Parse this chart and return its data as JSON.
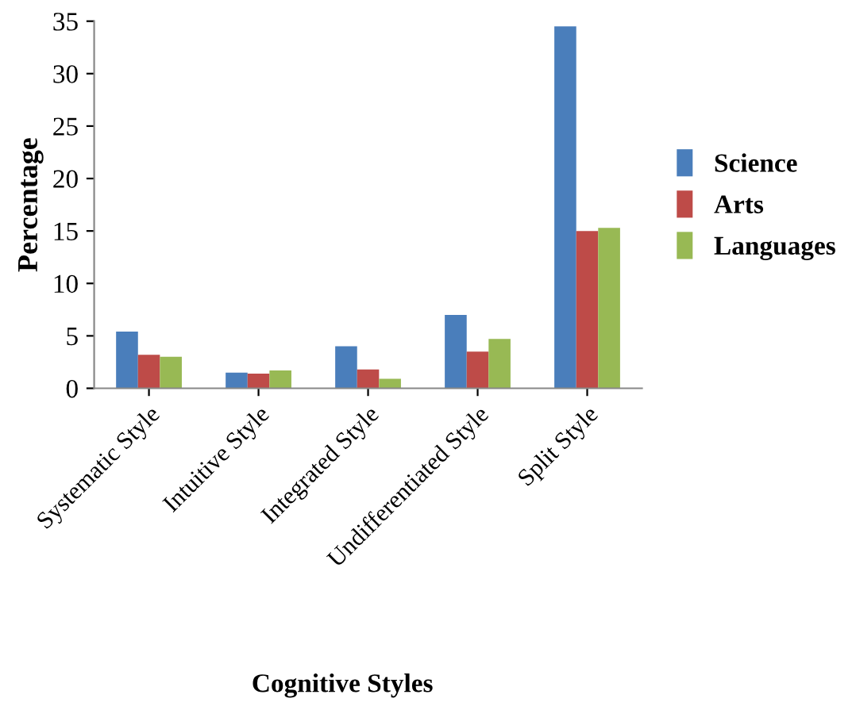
{
  "chart_data": {
    "type": "bar",
    "xlabel": "Cognitive Styles",
    "ylabel": "Percentage",
    "categories": [
      "Systematic Style",
      "Intuitive Style",
      "Integrated Style",
      "Undifferentiated Style",
      "Split Style"
    ],
    "series": [
      {
        "name": "Science",
        "color": "#4a7ebb",
        "values": [
          5.4,
          1.5,
          4.0,
          7.0,
          34.5
        ]
      },
      {
        "name": "Arts",
        "color": "#be4b48",
        "values": [
          3.2,
          1.4,
          1.8,
          3.5,
          15.0
        ]
      },
      {
        "name": "Languages",
        "color": "#98b954",
        "values": [
          3.0,
          1.7,
          0.9,
          4.7,
          15.3
        ]
      }
    ],
    "ylim": [
      0,
      35
    ],
    "yticks": [
      0,
      5,
      10,
      15,
      20,
      25,
      30,
      35
    ],
    "grid": false,
    "legend": "right"
  }
}
